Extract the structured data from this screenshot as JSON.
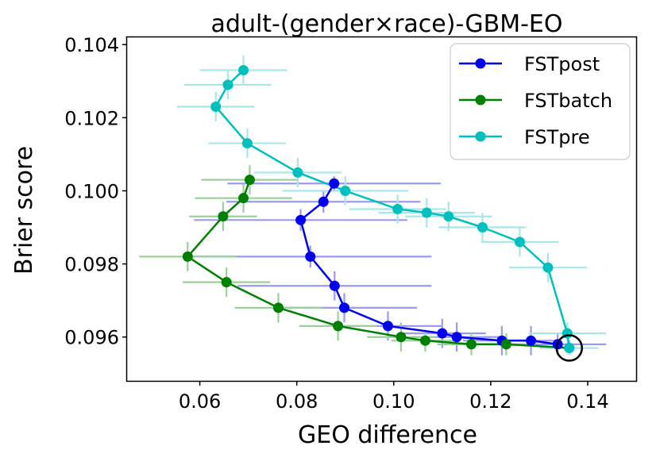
{
  "chart_data": {
    "type": "line",
    "title": "adult-(gender×race)-GBM-EO",
    "xlabel": "GEO difference",
    "ylabel": "Brier score",
    "xlim": [
      0.045,
      0.15
    ],
    "ylim": [
      0.0948,
      0.1042
    ],
    "xticks": [
      0.06,
      0.08,
      0.1,
      0.12,
      0.14
    ],
    "xtick_labels": [
      "0.06",
      "0.08",
      "0.10",
      "0.12",
      "0.14"
    ],
    "yticks": [
      0.096,
      0.098,
      0.1,
      0.102,
      0.104
    ],
    "ytick_labels": [
      "0.096",
      "0.098",
      "0.100",
      "0.102",
      "0.104"
    ],
    "legend_position": "top-right",
    "highlight_point": {
      "x": 0.1362,
      "y": 0.0957
    },
    "series": [
      {
        "name": "FSTpost",
        "color": "#0000ee",
        "errbar_color": "#9a9af2",
        "x": [
          0.0877,
          0.0855,
          0.0808,
          0.0828,
          0.0878,
          0.0898,
          0.0988,
          0.11,
          0.113,
          0.1223,
          0.1283,
          0.1338
        ],
        "y": [
          0.1002,
          0.0997,
          0.0992,
          0.0982,
          0.0974,
          0.0968,
          0.0963,
          0.0961,
          0.096,
          0.0959,
          0.0959,
          0.0958
        ],
        "xerr": [
          0.022,
          0.02,
          0.022,
          0.025,
          0.02,
          0.015,
          0.011,
          0.009,
          0.009,
          0.008,
          0.006,
          0.01
        ],
        "yerr": [
          0.0002,
          0.0003,
          0.0003,
          0.0003,
          0.0004,
          0.0004,
          0.0004,
          0.0004,
          0.0004,
          0.0004,
          0.0004,
          0.0003
        ]
      },
      {
        "name": "FSTbatch",
        "color": "#008000",
        "errbar_color": "#9ad09a",
        "x": [
          0.0703,
          0.069,
          0.0648,
          0.0575,
          0.0655,
          0.0762,
          0.0885,
          0.1015,
          0.1065,
          0.116,
          0.1232,
          0.1362
        ],
        "y": [
          0.1003,
          0.0998,
          0.0993,
          0.0982,
          0.0975,
          0.0968,
          0.0963,
          0.096,
          0.0959,
          0.0958,
          0.0958,
          0.0957
        ],
        "xerr": [
          0.01,
          0.01,
          0.007,
          0.01,
          0.009,
          0.009,
          0.008,
          0.007,
          0.007,
          0.007,
          0.006,
          0.006
        ],
        "yerr": [
          0.0004,
          0.0004,
          0.0004,
          0.0004,
          0.0004,
          0.0004,
          0.0004,
          0.0004,
          0.0003,
          0.0003,
          0.0003,
          0.0002
        ]
      },
      {
        "name": "FSTpre",
        "color": "#00bfbf",
        "errbar_color": "#a6e8e8",
        "x": [
          0.069,
          0.0658,
          0.0633,
          0.0698,
          0.0802,
          0.09,
          0.1008,
          0.1068,
          0.1113,
          0.1183,
          0.126,
          0.1318,
          0.1358,
          0.1362
        ],
        "y": [
          0.1033,
          0.1029,
          0.1023,
          0.1013,
          0.1005,
          0.1,
          0.0995,
          0.0994,
          0.0993,
          0.099,
          0.0986,
          0.0979,
          0.0961,
          0.0957
        ],
        "xerr": [
          0.009,
          0.009,
          0.008,
          0.008,
          0.009,
          0.013,
          0.01,
          0.01,
          0.009,
          0.009,
          0.008,
          0.008,
          0.008,
          0.006
        ],
        "yerr": [
          0.0004,
          0.0004,
          0.0004,
          0.0004,
          0.0004,
          0.0004,
          0.0004,
          0.0004,
          0.0004,
          0.0004,
          0.0004,
          0.0004,
          0.0003,
          0.0002
        ]
      }
    ]
  }
}
